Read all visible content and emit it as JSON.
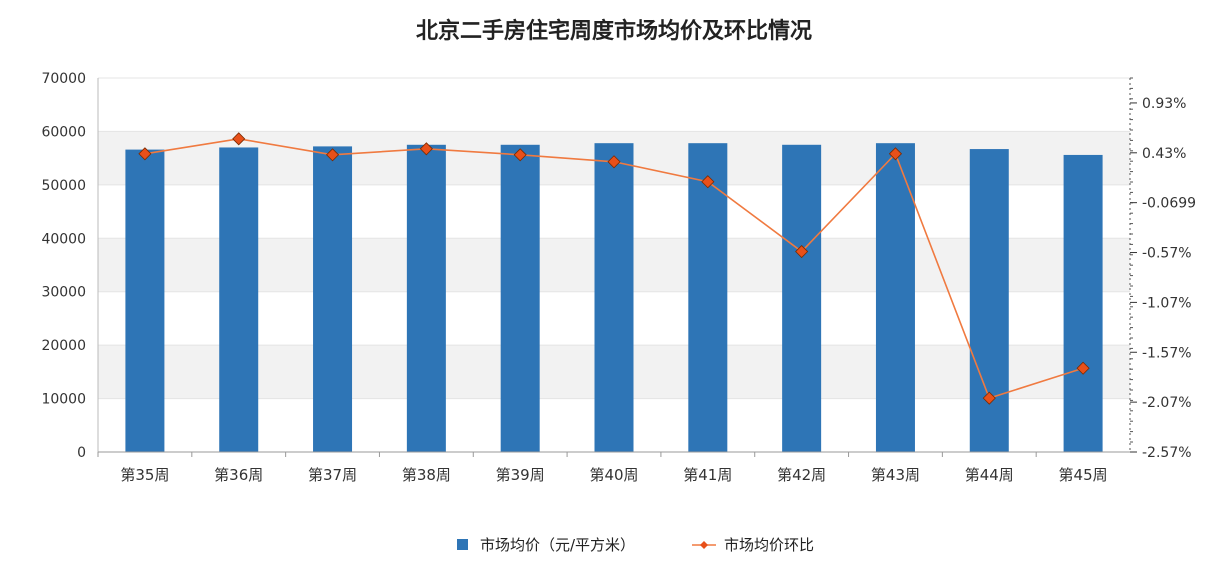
{
  "chart_data": {
    "type": "bar",
    "title": "北京二手房住宅周度市场均价及环比情况",
    "categories": [
      "第35周",
      "第36周",
      "第37周",
      "第38周",
      "第39周",
      "第40周",
      "第41周",
      "第42周",
      "第43周",
      "第44周",
      "第45周"
    ],
    "series": [
      {
        "name": "市场均价（元/平方米）",
        "type": "bar",
        "axis": "left",
        "color": "#2e75b6",
        "values": [
          56600,
          57000,
          57200,
          57500,
          57500,
          57800,
          57800,
          57500,
          57800,
          56700,
          55600
        ]
      },
      {
        "name": "市场均价环比",
        "type": "line",
        "axis": "right",
        "color": "#f07a40",
        "marker_color": "#e8501a",
        "values": [
          0.42,
          0.57,
          0.41,
          0.47,
          0.41,
          0.34,
          0.14,
          -0.56,
          0.42,
          -2.03,
          -1.73
        ]
      }
    ],
    "left_axis": {
      "min": 0,
      "max": 70000,
      "ticks": [
        "0",
        "10000",
        "20000",
        "30000",
        "40000",
        "50000",
        "60000",
        "70000"
      ]
    },
    "right_axis": {
      "min": -2.57,
      "max": 1.18,
      "ticks": [
        "-2.57%",
        "-2.07%",
        "-1.57%",
        "-1.07%",
        "-0.57%",
        "-0.0699",
        "0.43%",
        "0.93%"
      ],
      "tick_values": [
        -2.57,
        -2.07,
        -1.57,
        -1.07,
        -0.57,
        -0.0699,
        0.43,
        0.93
      ]
    },
    "legend_position": "bottom",
    "grid": true
  }
}
